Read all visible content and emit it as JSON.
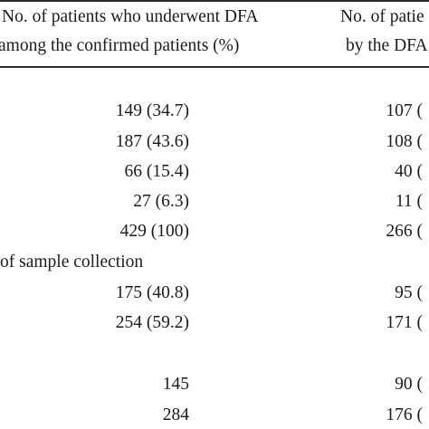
{
  "header": {
    "col1_line1": "No. of patients who underwent DFA",
    "col1_line2": "among the confirmed patients (%)",
    "col2_line1": "No. of patie",
    "col2_line2": "by the DFA"
  },
  "section_sample": "of sample collection",
  "rows": [
    {
      "c1": "149 (34.7)",
      "c2": "107 ("
    },
    {
      "c1": "187 (43.6)",
      "c2": "108 ("
    },
    {
      "c1": "66 (15.4)",
      "c2": "40 ("
    },
    {
      "c1": "27 (6.3)",
      "c2": "11 ("
    },
    {
      "c1": "429 (100)",
      "c2": "266 ("
    },
    {
      "c1": "175 (40.8)",
      "c2": "95 ("
    },
    {
      "c1": "254 (59.2)",
      "c2": "171 ("
    },
    {
      "c1": "145",
      "c2": "90 ("
    },
    {
      "c1": "284",
      "c2": "176 ("
    }
  ]
}
